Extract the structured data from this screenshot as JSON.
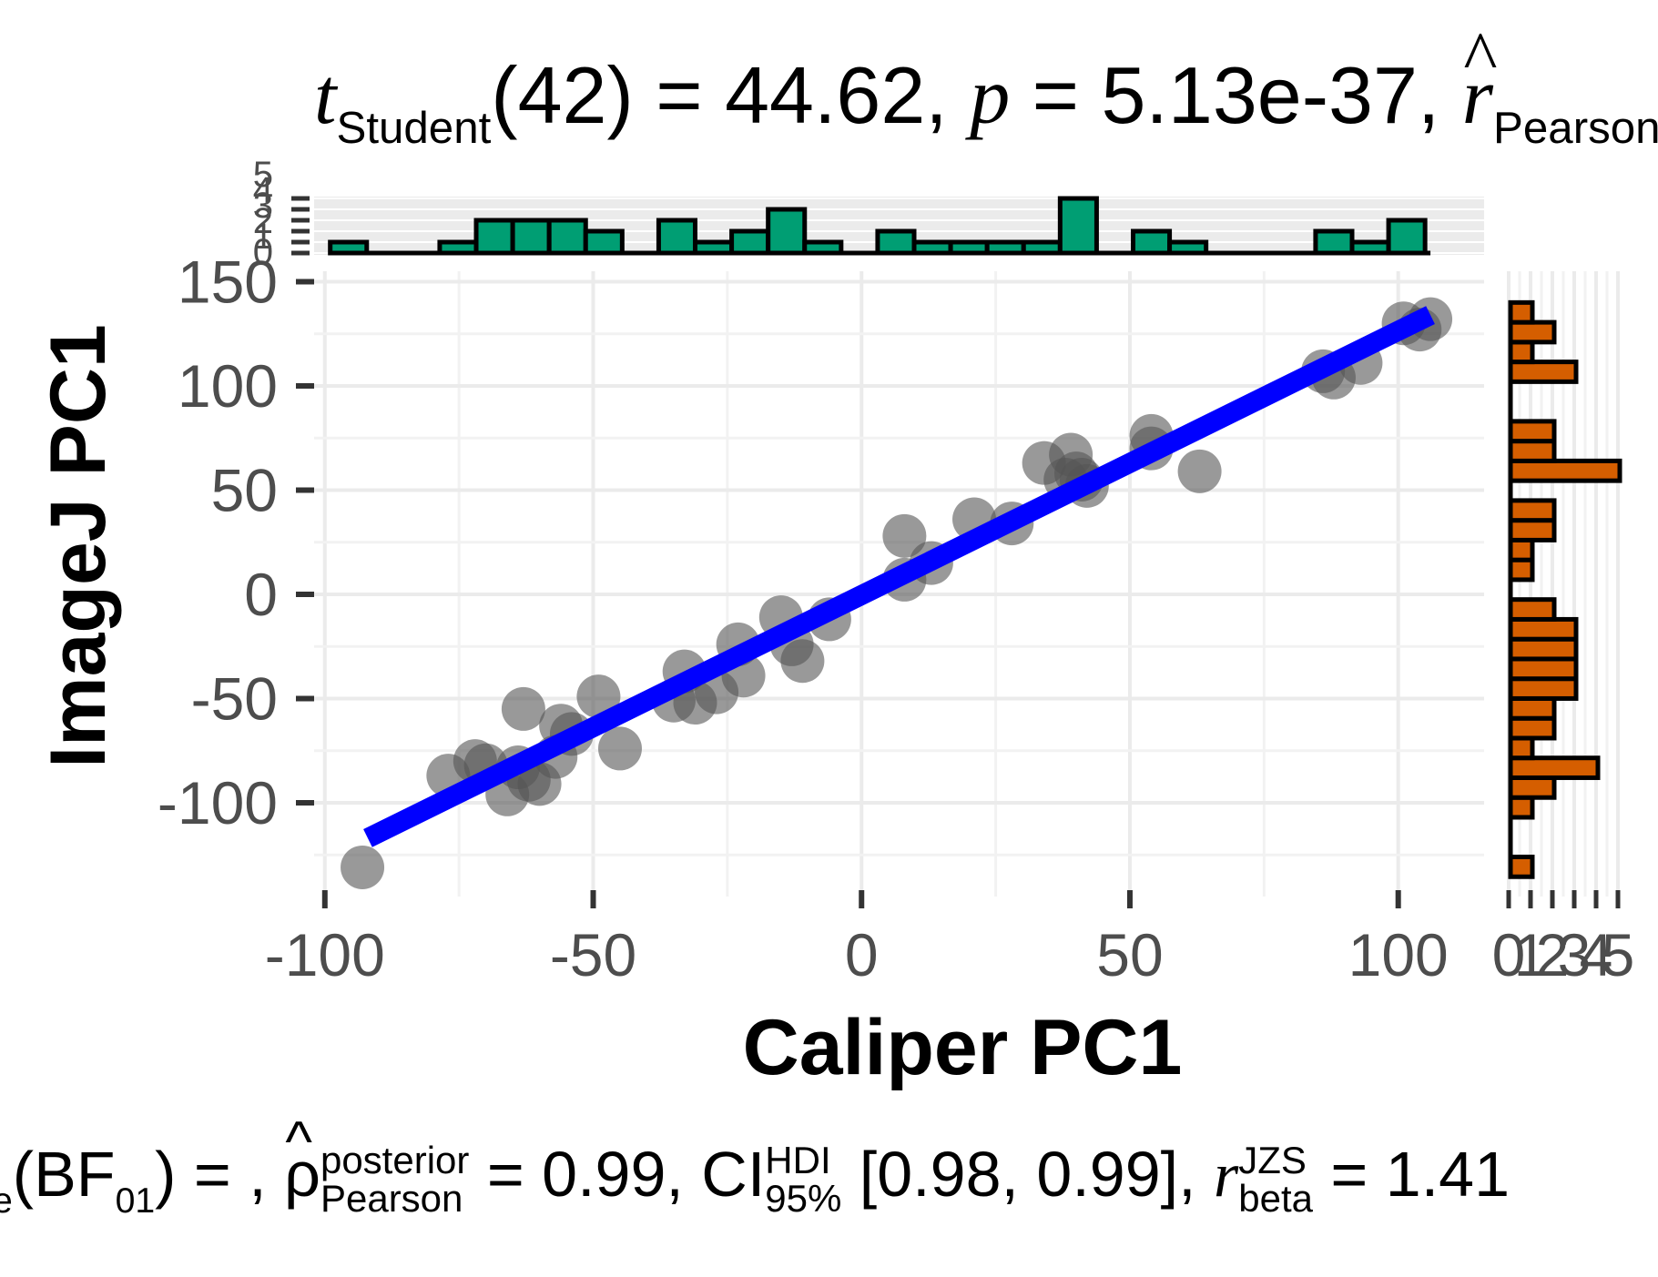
{
  "chart_data": {
    "type": "scatter",
    "title": {
      "t_label": "t",
      "t_sub": "Student",
      "df": "(42)",
      "eq1": " = 44.62, ",
      "p_label": "p",
      "eq2": " = 5.13e-37, ",
      "r_label": "r",
      "r_sub": "Pearson"
    },
    "caption": {
      "log_sub": "e",
      "bf_open": "(BF",
      "bf_sub": "01",
      "bf_close": ") = , ",
      "rho": "ρ",
      "rho_sup": "posterior",
      "rho_sub": "Pearson",
      "rho_val": " = 0.99, CI",
      "ci_sup": "HDI",
      "ci_sub": "95%",
      "ci_val": " [0.98, 0.99], ",
      "r_label": "r",
      "r_sup": "JZS",
      "r_sub": "beta",
      "r_val": " = 1.41"
    },
    "xlabel": "Caliper PC1",
    "ylabel": "ImageJ PC1",
    "xlim": [
      -102,
      116
    ],
    "ylim": [
      -145,
      155
    ],
    "x_ticks": [
      -100,
      -50,
      0,
      50,
      100
    ],
    "x_tick_labels": [
      "-100",
      "-50",
      "0",
      "50",
      "100"
    ],
    "y_ticks": [
      -100,
      -50,
      0,
      50,
      100,
      150
    ],
    "y_tick_labels": [
      "-100",
      "-50",
      "0",
      "50",
      "100",
      "150"
    ],
    "grid": true,
    "regression_line": {
      "x": [
        -92,
        106
      ],
      "y": [
        -117,
        134
      ],
      "color": "#0000ff"
    },
    "point_color": "#555555",
    "points": [
      {
        "x": -93,
        "y": -131
      },
      {
        "x": -77,
        "y": -87
      },
      {
        "x": -72,
        "y": -80
      },
      {
        "x": -70,
        "y": -82
      },
      {
        "x": -66,
        "y": -96
      },
      {
        "x": -64,
        "y": -83
      },
      {
        "x": -63,
        "y": -55
      },
      {
        "x": -62,
        "y": -89
      },
      {
        "x": -60,
        "y": -91
      },
      {
        "x": -57,
        "y": -78
      },
      {
        "x": -56,
        "y": -63
      },
      {
        "x": -54,
        "y": -67
      },
      {
        "x": -49,
        "y": -49
      },
      {
        "x": -45,
        "y": -74
      },
      {
        "x": -35,
        "y": -51
      },
      {
        "x": -33,
        "y": -37
      },
      {
        "x": -31,
        "y": -52
      },
      {
        "x": -27,
        "y": -47
      },
      {
        "x": -23,
        "y": -24
      },
      {
        "x": -22,
        "y": -39
      },
      {
        "x": -15,
        "y": -11
      },
      {
        "x": -13,
        "y": -24
      },
      {
        "x": -11,
        "y": -32
      },
      {
        "x": -6,
        "y": -12
      },
      {
        "x": 8,
        "y": 7
      },
      {
        "x": 8,
        "y": 28
      },
      {
        "x": 13,
        "y": 15
      },
      {
        "x": 21,
        "y": 36
      },
      {
        "x": 28,
        "y": 34
      },
      {
        "x": 34,
        "y": 63
      },
      {
        "x": 38,
        "y": 55
      },
      {
        "x": 39,
        "y": 67
      },
      {
        "x": 40,
        "y": 58
      },
      {
        "x": 41,
        "y": 55
      },
      {
        "x": 42,
        "y": 52
      },
      {
        "x": 54,
        "y": 76
      },
      {
        "x": 54,
        "y": 70
      },
      {
        "x": 63,
        "y": 59
      },
      {
        "x": 86,
        "y": 107
      },
      {
        "x": 88,
        "y": 104
      },
      {
        "x": 93,
        "y": 111
      },
      {
        "x": 101,
        "y": 130
      },
      {
        "x": 104,
        "y": 127
      },
      {
        "x": 106,
        "y": 132
      }
    ],
    "top_histogram": {
      "color": "#009E73",
      "bin_width": 6.8,
      "bins": [
        {
          "x0": -99.0,
          "count": 1
        },
        {
          "x0": -78.6,
          "count": 1
        },
        {
          "x0": -71.8,
          "count": 3
        },
        {
          "x0": -65.0,
          "count": 3
        },
        {
          "x0": -58.2,
          "count": 3
        },
        {
          "x0": -51.4,
          "count": 2
        },
        {
          "x0": -37.8,
          "count": 3
        },
        {
          "x0": -31.0,
          "count": 1
        },
        {
          "x0": -24.2,
          "count": 2
        },
        {
          "x0": -17.4,
          "count": 4
        },
        {
          "x0": -10.6,
          "count": 1
        },
        {
          "x0": 3.0,
          "count": 2
        },
        {
          "x0": 9.8,
          "count": 1
        },
        {
          "x0": 16.6,
          "count": 1
        },
        {
          "x0": 23.4,
          "count": 1
        },
        {
          "x0": 30.2,
          "count": 1
        },
        {
          "x0": 37.0,
          "count": 5
        },
        {
          "x0": 50.6,
          "count": 2
        },
        {
          "x0": 57.4,
          "count": 1
        },
        {
          "x0": 84.6,
          "count": 2
        },
        {
          "x0": 91.4,
          "count": 1
        },
        {
          "x0": 98.2,
          "count": 3
        }
      ],
      "axis_ticks": [
        "0",
        "1",
        "2",
        "3",
        "4",
        "5"
      ]
    },
    "right_histogram": {
      "color": "#D55E00",
      "bin_width": 9.5,
      "bins": [
        {
          "y0": -135.5,
          "count": 1
        },
        {
          "y0": -107.0,
          "count": 1
        },
        {
          "y0": -97.5,
          "count": 2
        },
        {
          "y0": -88.0,
          "count": 4
        },
        {
          "y0": -78.5,
          "count": 1
        },
        {
          "y0": -69.0,
          "count": 2
        },
        {
          "y0": -59.5,
          "count": 2
        },
        {
          "y0": -50.0,
          "count": 3
        },
        {
          "y0": -40.5,
          "count": 3
        },
        {
          "y0": -31.0,
          "count": 3
        },
        {
          "y0": -21.5,
          "count": 3
        },
        {
          "y0": -12.0,
          "count": 2
        },
        {
          "y0": 7.0,
          "count": 1
        },
        {
          "y0": 16.5,
          "count": 1
        },
        {
          "y0": 26.0,
          "count": 2
        },
        {
          "y0": 35.5,
          "count": 2
        },
        {
          "y0": 54.5,
          "count": 5
        },
        {
          "y0": 64.0,
          "count": 2
        },
        {
          "y0": 73.5,
          "count": 2
        },
        {
          "y0": 102.0,
          "count": 3
        },
        {
          "y0": 111.5,
          "count": 1
        },
        {
          "y0": 121.0,
          "count": 2
        },
        {
          "y0": 130.5,
          "count": 1
        }
      ],
      "axis_tick_labels": [
        "0",
        "1",
        "2",
        "3",
        "4",
        "5"
      ]
    }
  }
}
